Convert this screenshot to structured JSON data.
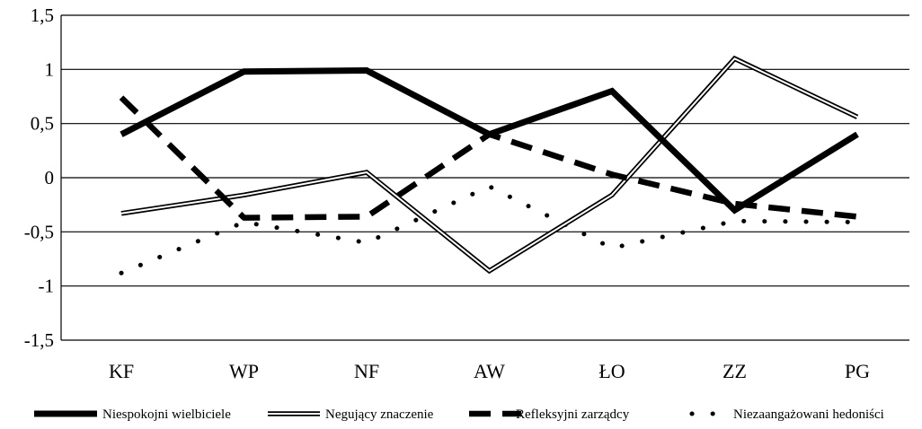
{
  "chart_data": {
    "type": "line",
    "title": "",
    "xlabel": "",
    "ylabel": "",
    "categories": [
      "KF",
      "WP",
      "NF",
      "AW",
      "ŁO",
      "ZZ",
      "PG"
    ],
    "ylim": [
      -1.5,
      1.5
    ],
    "yticks": [
      1.5,
      1,
      0.5,
      0,
      -0.5,
      -1,
      -1.5
    ],
    "ytick_labels": [
      "1,5",
      "1",
      "0,5",
      "0",
      "-0,5",
      "-1",
      "-1,5"
    ],
    "grid": "horizontal",
    "legend_position": "bottom",
    "series": [
      {
        "name": "Niespokojni wielbiciele",
        "style": "thick-solid",
        "color": "#000000",
        "values": [
          0.4,
          0.98,
          0.99,
          0.4,
          0.8,
          -0.3,
          0.4
        ]
      },
      {
        "name": "Negujący znaczenie",
        "style": "double",
        "color": "#000000",
        "values": [
          -0.33,
          -0.16,
          0.05,
          -0.86,
          -0.16,
          1.1,
          0.56
        ]
      },
      {
        "name": "Refleksyjni zarządcy",
        "style": "dashed",
        "color": "#000000",
        "values": [
          0.74,
          -0.37,
          -0.36,
          0.4,
          0.03,
          -0.24,
          -0.36
        ]
      },
      {
        "name": "Niezaangażowani hedoniści",
        "style": "dotted",
        "color": "#000000",
        "values": [
          -0.88,
          -0.41,
          -0.6,
          -0.08,
          -0.65,
          -0.4,
          -0.41
        ]
      }
    ]
  }
}
